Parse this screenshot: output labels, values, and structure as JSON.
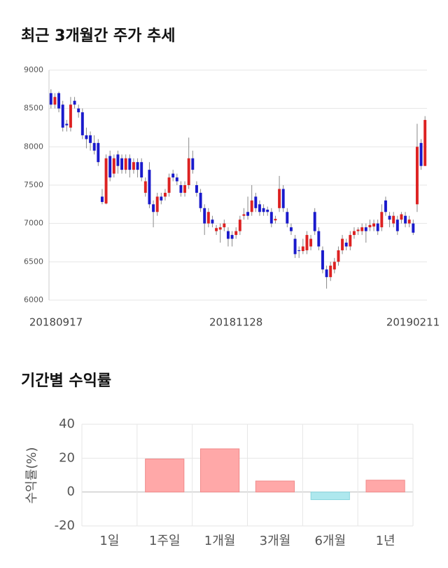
{
  "chart_data": [
    {
      "type": "candlestick",
      "title": "최근 3개월간 주가 추세",
      "categories": [
        "20180917",
        null,
        null,
        null,
        null,
        null,
        null,
        null,
        null,
        null,
        null,
        null,
        null,
        null,
        null,
        null,
        null,
        null,
        null,
        null,
        null,
        null,
        null,
        null,
        null,
        null,
        null,
        null,
        null,
        null,
        null,
        null,
        null,
        null,
        null,
        null,
        null,
        null,
        null,
        null,
        null,
        null,
        null,
        null,
        null,
        null,
        null,
        "20181128",
        null,
        null,
        null,
        null,
        null,
        null,
        null,
        null,
        null,
        null,
        null,
        null,
        null,
        null,
        null,
        null,
        null,
        null,
        null,
        null,
        null,
        null,
        null,
        null,
        null,
        null,
        null,
        null,
        null,
        null,
        null,
        null,
        null,
        null,
        null,
        null,
        null,
        null,
        null,
        null,
        null,
        null,
        null,
        null,
        null,
        null,
        null,
        "20190211"
      ],
      "open": [
        8700,
        8550,
        8700,
        8550,
        8300,
        8250,
        8600,
        8500,
        8450,
        8150,
        8150,
        8050,
        8050,
        7350,
        7260,
        7880,
        7650,
        7900,
        7850,
        7700,
        7850,
        7700,
        7800,
        7800,
        7400,
        7700,
        7250,
        7150,
        7350,
        7350,
        7400,
        7650,
        7600,
        7500,
        7400,
        7500,
        7850,
        7500,
        7400,
        7200,
        7000,
        7050,
        6900,
        6920,
        6950,
        6900,
        6850,
        6850,
        6900,
        7100,
        7150,
        7150,
        7350,
        7250,
        7200,
        7180,
        7150,
        7040,
        7200,
        7450,
        7150,
        6950,
        6800,
        6650,
        6640,
        6650,
        6700,
        7150,
        6900,
        6650,
        6400,
        6300,
        6400,
        6500,
        6650,
        6750,
        6700,
        6850,
        6900,
        6900,
        6950,
        6950,
        6960,
        7000,
        6950,
        7300,
        7100,
        7000,
        7050,
        7050,
        7100,
        7000,
        7000,
        7250,
        8050,
        7750
      ],
      "high": [
        8750,
        8700,
        8720,
        8600,
        8350,
        8650,
        8650,
        8550,
        8500,
        8250,
        8200,
        8150,
        8100,
        7450,
        7900,
        7950,
        7900,
        7950,
        7900,
        7900,
        7900,
        7850,
        7850,
        7850,
        7600,
        7800,
        7300,
        7400,
        7400,
        7450,
        7650,
        7700,
        7650,
        7550,
        7550,
        8120,
        7950,
        7550,
        7450,
        7250,
        7200,
        7100,
        6980,
        7000,
        7050,
        6950,
        6900,
        6950,
        7100,
        7200,
        7350,
        7500,
        7400,
        7300,
        7250,
        7220,
        7200,
        7100,
        7620,
        7500,
        7200,
        7000,
        6850,
        6700,
        6800,
        6900,
        6850,
        7200,
        6950,
        6700,
        6450,
        6500,
        6550,
        6700,
        6850,
        6800,
        6900,
        6950,
        6950,
        7000,
        7000,
        7050,
        7050,
        7050,
        7250,
        7350,
        7150,
        7150,
        7100,
        7150,
        7150,
        7100,
        7050,
        8300,
        8100,
        8400
      ],
      "low": [
        8500,
        8500,
        8450,
        8200,
        8200,
        8200,
        8500,
        8380,
        8100,
        7980,
        7950,
        7900,
        7750,
        7250,
        7250,
        7550,
        7600,
        7650,
        7650,
        7650,
        7600,
        7650,
        7600,
        7550,
        7350,
        7200,
        6950,
        7100,
        7250,
        7300,
        7350,
        7550,
        7500,
        7350,
        7350,
        7450,
        7650,
        7350,
        7150,
        6850,
        6950,
        6950,
        6850,
        6750,
        6900,
        6700,
        6700,
        6800,
        6850,
        7050,
        7050,
        7100,
        7150,
        7100,
        7100,
        7100,
        6950,
        7000,
        7150,
        7150,
        6950,
        6850,
        6550,
        6550,
        6600,
        6600,
        6650,
        6850,
        6650,
        6350,
        6150,
        6250,
        6350,
        6450,
        6600,
        6650,
        6650,
        6800,
        6850,
        6850,
        6750,
        6900,
        6900,
        6850,
        6900,
        7100,
        6950,
        6950,
        6850,
        7000,
        6950,
        6950,
        6850,
        7150,
        7700,
        7750
      ],
      "close": [
        8550,
        8650,
        8500,
        8250,
        8280,
        8550,
        8550,
        8450,
        8150,
        8100,
        8050,
        7950,
        7800,
        7280,
        7850,
        7600,
        7850,
        7750,
        7700,
        7850,
        7700,
        7800,
        7700,
        7600,
        7550,
        7250,
        7150,
        7350,
        7300,
        7400,
        7600,
        7600,
        7550,
        7400,
        7500,
        7850,
        7700,
        7400,
        7200,
        7000,
        7150,
        7000,
        6940,
        6950,
        7000,
        6800,
        6800,
        6900,
        7050,
        7120,
        7100,
        7300,
        7200,
        7150,
        7150,
        7150,
        7000,
        7060,
        7450,
        7200,
        7000,
        6900,
        6600,
        6640,
        6700,
        6850,
        6800,
        6900,
        6700,
        6400,
        6300,
        6450,
        6500,
        6650,
        6800,
        6700,
        6850,
        6900,
        6920,
        6950,
        6900,
        6980,
        7000,
        6900,
        7150,
        7150,
        7050,
        7100,
        6900,
        7120,
        7000,
        7050,
        6880,
        8000,
        7750,
        8350
      ],
      "up_color": "#dd2222",
      "down_color": "#1a1acc",
      "ylim": [
        6000,
        9000
      ],
      "yticks": [
        6000,
        6500,
        7000,
        7500,
        8000,
        8500,
        9000
      ],
      "grid": true
    },
    {
      "type": "bar",
      "title": "기간별 수익률",
      "y_label": "수익률(%)",
      "categories": [
        "1일",
        "1주일",
        "1개월",
        "3개월",
        "6개월",
        "1년"
      ],
      "values": [
        0,
        19.5,
        25.5,
        6.5,
        -4.5,
        7
      ],
      "positive_color": "#ffa8a8",
      "negative_color": "#aee8ee",
      "ylim": [
        -20,
        40
      ],
      "yticks": [
        -20,
        0,
        20,
        40
      ],
      "grid": true
    }
  ]
}
